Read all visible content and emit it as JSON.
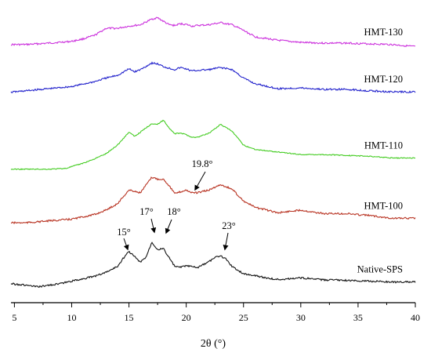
{
  "chart_data": {
    "type": "line",
    "xlabel": "2θ (°)",
    "ylabel": "",
    "xlim": [
      4.7,
      40
    ],
    "x_ticks": [
      5,
      10,
      15,
      20,
      25,
      30,
      35,
      40
    ],
    "grid": false,
    "legend": "labels placed at right end of each curve",
    "series": [
      {
        "name": "HMT-130",
        "color": "#cc33dd",
        "x": [
          4.7,
          6,
          8,
          10,
          11,
          12,
          13,
          14,
          15,
          16,
          17,
          17.5,
          18,
          18.5,
          19,
          19.5,
          20,
          20.5,
          21,
          22,
          23,
          24,
          25,
          26,
          28,
          30,
          32,
          34,
          36,
          38,
          40
        ],
        "y": [
          0.36,
          0.36,
          0.4,
          0.45,
          0.52,
          0.62,
          0.82,
          0.82,
          0.88,
          0.92,
          1.08,
          1.12,
          1.02,
          0.92,
          0.9,
          0.95,
          0.93,
          0.88,
          0.9,
          0.92,
          0.98,
          0.92,
          0.76,
          0.58,
          0.48,
          0.42,
          0.4,
          0.4,
          0.38,
          0.36,
          0.3
        ]
      },
      {
        "name": "HMT-120",
        "color": "#2222cc",
        "x": [
          4.7,
          6,
          8,
          10,
          11,
          12,
          13,
          14,
          15,
          15.5,
          16,
          17,
          17.5,
          18,
          18.5,
          19,
          19.5,
          20,
          20.5,
          21,
          22,
          23,
          24,
          25,
          26,
          28,
          30,
          32,
          34,
          36,
          38,
          40
        ],
        "y": [
          0.32,
          0.36,
          0.42,
          0.48,
          0.55,
          0.62,
          0.72,
          0.8,
          0.98,
          0.9,
          0.96,
          1.15,
          1.12,
          1.05,
          1.0,
          0.96,
          1.02,
          0.98,
          0.92,
          0.94,
          0.96,
          1.02,
          0.96,
          0.72,
          0.56,
          0.42,
          0.44,
          0.4,
          0.4,
          0.36,
          0.33,
          0.33
        ]
      },
      {
        "name": "HMT-110",
        "color": "#44cc22",
        "x": [
          4.7,
          6,
          8,
          9.5,
          10,
          11,
          12,
          13,
          14,
          15,
          15.5,
          16,
          17,
          17.5,
          18,
          18.5,
          19,
          19.5,
          20,
          20.5,
          21,
          22,
          23,
          24,
          25,
          26,
          28,
          30,
          32,
          34,
          36,
          38,
          40
        ],
        "y": [
          0.04,
          0.04,
          0.04,
          0.06,
          0.1,
          0.18,
          0.28,
          0.4,
          0.6,
          0.9,
          0.8,
          0.9,
          1.1,
          1.08,
          1.18,
          1.0,
          0.86,
          0.88,
          0.84,
          0.78,
          0.78,
          0.88,
          1.08,
          0.92,
          0.6,
          0.5,
          0.44,
          0.38,
          0.38,
          0.36,
          0.34,
          0.3,
          0.3
        ]
      },
      {
        "name": "HMT-100",
        "color": "#b83322",
        "x": [
          4.7,
          6,
          8,
          10,
          12,
          13,
          14,
          15,
          16,
          17,
          17.5,
          18,
          18.5,
          19,
          19.5,
          20,
          20.5,
          21,
          22,
          23,
          24,
          25,
          26,
          28,
          30,
          32,
          34,
          36,
          38,
          40
        ],
        "y": [
          0.24,
          0.24,
          0.28,
          0.32,
          0.42,
          0.52,
          0.66,
          0.96,
          0.9,
          1.24,
          1.2,
          1.2,
          1.06,
          0.88,
          0.92,
          0.96,
          0.9,
          0.9,
          0.96,
          1.08,
          0.98,
          0.72,
          0.58,
          0.46,
          0.52,
          0.44,
          0.44,
          0.4,
          0.34,
          0.34
        ]
      },
      {
        "name": "Native-SPS",
        "color": "#111111",
        "x": [
          4.7,
          6,
          7,
          8,
          9,
          10,
          11,
          12,
          13,
          14,
          14.5,
          15,
          15.5,
          16,
          16.5,
          17,
          17.5,
          18,
          18.5,
          19,
          19.5,
          20,
          21,
          22,
          22.5,
          23,
          23.5,
          24,
          25,
          26,
          27,
          28,
          30,
          32,
          34,
          36,
          38,
          40
        ],
        "y": [
          0.16,
          0.12,
          0.08,
          0.12,
          0.16,
          0.22,
          0.28,
          0.34,
          0.44,
          0.58,
          0.78,
          0.95,
          0.82,
          0.68,
          0.82,
          1.18,
          1.0,
          1.02,
          0.8,
          0.58,
          0.56,
          0.6,
          0.55,
          0.7,
          0.8,
          0.84,
          0.76,
          0.58,
          0.4,
          0.36,
          0.3,
          0.26,
          0.3,
          0.25,
          0.24,
          0.22,
          0.2,
          0.2
        ]
      }
    ],
    "annotations": [
      {
        "text": "19.8°",
        "x": 19.8,
        "series": "HMT-100",
        "arrow": true
      },
      {
        "text": "15°",
        "x": 15,
        "series": "Native-SPS",
        "arrow": true
      },
      {
        "text": "17°",
        "x": 17,
        "series": "Native-SPS",
        "arrow": true
      },
      {
        "text": "18°",
        "x": 18,
        "series": "Native-SPS",
        "arrow": true
      },
      {
        "text": "23°",
        "x": 23,
        "series": "Native-SPS",
        "arrow": true
      }
    ]
  }
}
